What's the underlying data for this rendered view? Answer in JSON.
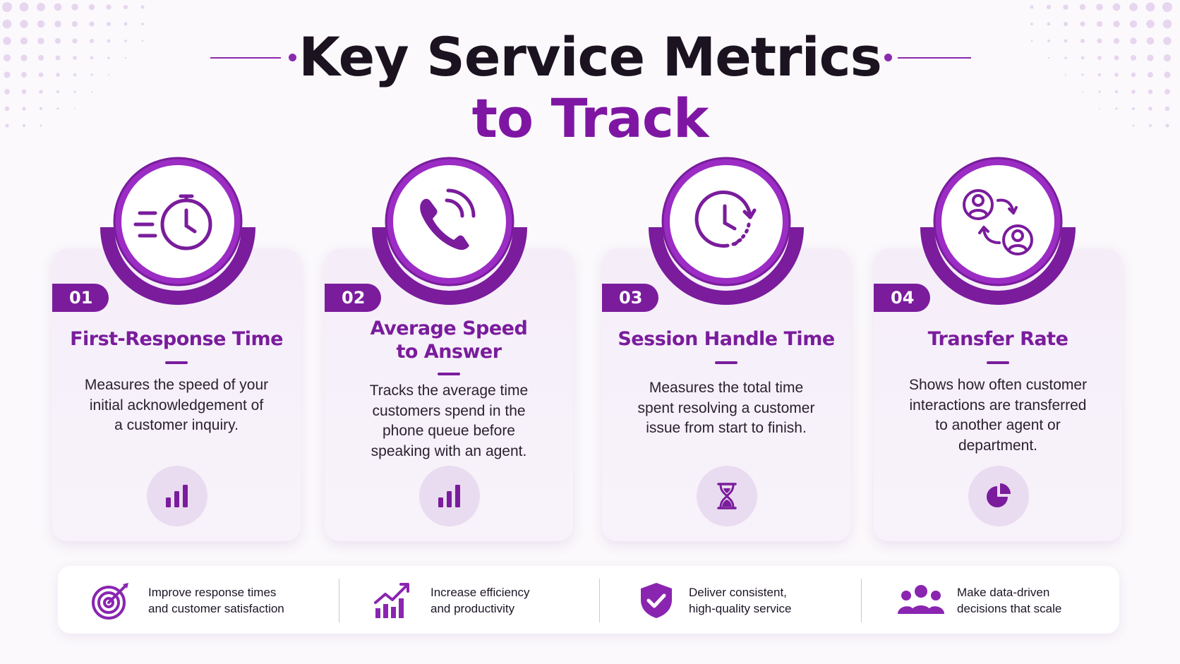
{
  "header": {
    "title_line1": "Key Service Metrics",
    "title_line2": "to Track"
  },
  "colors": {
    "primary": "#7a1c9c",
    "primary_light": "#a53ccc",
    "card_bg": "#f5eef9",
    "mini_circle": "#e9dcf0",
    "text_dark": "#1b1320"
  },
  "metrics": [
    {
      "number": "01",
      "title_lines": [
        "First-Response Time"
      ],
      "desc_lines": [
        "Measures the speed of your",
        "initial acknowledgement of",
        "a customer inquiry."
      ],
      "main_icon": "stopwatch-speed-icon",
      "mini_icon": "bar-chart-icon"
    },
    {
      "number": "02",
      "title_lines": [
        "Average Speed",
        "to Answer"
      ],
      "desc_lines": [
        "Tracks the average time",
        "customers spend in the",
        "phone queue before",
        "speaking with an agent."
      ],
      "main_icon": "phone-ringing-icon",
      "mini_icon": "bar-chart-icon"
    },
    {
      "number": "03",
      "title_lines": [
        "Session Handle Time"
      ],
      "desc_lines": [
        "Measures the total time",
        "spent resolving a customer",
        "issue from start to finish."
      ],
      "main_icon": "clock-cycle-icon",
      "mini_icon": "hourglass-icon"
    },
    {
      "number": "04",
      "title_lines": [
        "Transfer Rate"
      ],
      "desc_lines": [
        "Shows how often customer",
        "interactions are transferred",
        "to another agent or",
        "department."
      ],
      "main_icon": "user-transfer-icon",
      "mini_icon": "pie-chart-icon"
    }
  ],
  "benefits": [
    {
      "icon": "target-icon",
      "lines": [
        "Improve response times",
        "and customer satisfaction"
      ]
    },
    {
      "icon": "growth-chart-icon",
      "lines": [
        "Increase efficiency",
        "and productivity"
      ]
    },
    {
      "icon": "shield-check-icon",
      "lines": [
        "Deliver consistent,",
        "high-quality service"
      ]
    },
    {
      "icon": "team-icon",
      "lines": [
        "Make data-driven",
        "decisions that scale"
      ]
    }
  ]
}
